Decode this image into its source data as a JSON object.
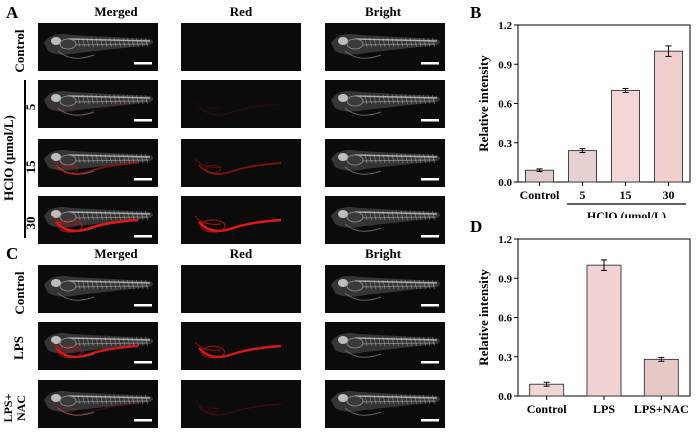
{
  "panels": {
    "A": {
      "letter": "A",
      "columns": [
        "Merged",
        "Red",
        "Bright"
      ],
      "rows": [
        {
          "label": "Control",
          "red_level": 0.0
        },
        {
          "label": "5",
          "red_level": 0.15
        },
        {
          "label": "15",
          "red_level": 0.55
        },
        {
          "label": "30",
          "red_level": 1.0
        }
      ],
      "group_label": "HClO (μmol/L)"
    },
    "C": {
      "letter": "C",
      "columns": [
        "Merged",
        "Red",
        "Bright"
      ],
      "rows": [
        {
          "label": "Control",
          "red_level": 0.0
        },
        {
          "label": "LPS",
          "red_level": 0.95
        },
        {
          "label": "LPS+\nNAC",
          "label_line1": "LPS+",
          "label_line2": "NAC",
          "red_level": 0.25
        }
      ]
    },
    "B": {
      "letter": "B"
    },
    "D": {
      "letter": "D"
    }
  },
  "chart_data": [
    {
      "id": "B",
      "type": "bar",
      "categories": [
        "Control",
        "5",
        "15",
        "30"
      ],
      "values": [
        0.09,
        0.24,
        0.7,
        1.0
      ],
      "errors": [
        0.01,
        0.015,
        0.015,
        0.04
      ],
      "ylabel": "Relative intensity",
      "xlabel": "",
      "group_label": "HClO (μmol/L)",
      "ylim": [
        0,
        1.2
      ],
      "yticks": [
        "0.0",
        "0.3",
        "0.6",
        "0.9",
        "1.2"
      ],
      "bar_colors": [
        "#e0ccca",
        "#e6d2d0",
        "#f3d7d7",
        "#f2cfcf"
      ]
    },
    {
      "id": "D",
      "type": "bar",
      "categories": [
        "Control",
        "LPS",
        "LPS+NAC"
      ],
      "values": [
        0.09,
        1.0,
        0.28
      ],
      "errors": [
        0.015,
        0.04,
        0.015
      ],
      "ylabel": "Relative intensity",
      "xlabel": "",
      "ylim": [
        0,
        1.2
      ],
      "yticks": [
        "0.0",
        "0.3",
        "0.6",
        "0.9",
        "1.2"
      ],
      "bar_colors": [
        "#f0d6d6",
        "#f2d3d3",
        "#e6c9c6"
      ]
    }
  ],
  "colors": {
    "bar_edge": "#333333",
    "axis": "#000000"
  }
}
